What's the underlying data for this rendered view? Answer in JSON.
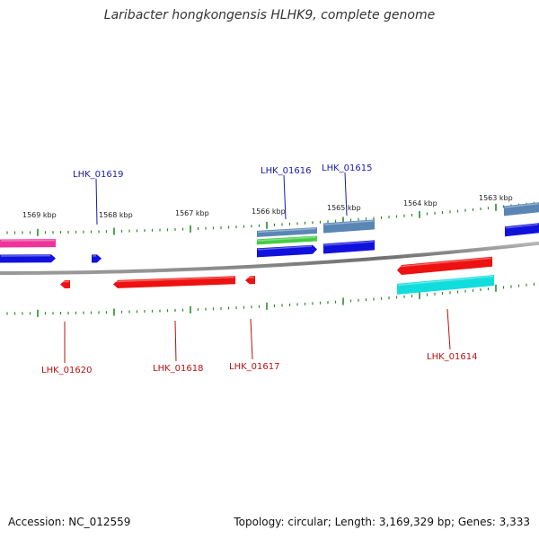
{
  "title": "Laribacter hongkongensis HLHK9, complete genome",
  "footer": {
    "accession": "Accession: NC_012559",
    "summary": "Topology: circular; Length: 3,169,329 bp; Genes: 3,333"
  },
  "colors": {
    "backbone": "#7f7f7f",
    "ticks": "#2a8a2a",
    "forward_label": "#1a1aaa",
    "reverse_label": "#bb1111",
    "pink": "#ee3399",
    "blue": "#1111dd",
    "steelblue": "#5a86b6",
    "green": "#44cc44",
    "red": "#ee1111",
    "cyan": "#11dddd"
  },
  "scale_labels": [
    {
      "kbp": 1569,
      "text": "1569 kbp"
    },
    {
      "kbp": 1568,
      "text": "1568 kbp"
    },
    {
      "kbp": 1567,
      "text": "1567 kbp"
    },
    {
      "kbp": 1566,
      "text": "1566 kbp"
    },
    {
      "kbp": 1565,
      "text": "1565 kbp"
    },
    {
      "kbp": 1564,
      "text": "1564 kbp"
    },
    {
      "kbp": 1563,
      "text": "1563 kbp"
    }
  ],
  "gene_labels": [
    {
      "id": "LHK_01619",
      "strand": "forward"
    },
    {
      "id": "LHK_01616",
      "strand": "forward"
    },
    {
      "id": "LHK_01615",
      "strand": "forward"
    },
    {
      "id": "LHK_01620",
      "strand": "reverse"
    },
    {
      "id": "LHK_01618",
      "strand": "reverse"
    },
    {
      "id": "LHK_01617",
      "strand": "reverse"
    },
    {
      "id": "LHK_01614",
      "strand": "reverse"
    }
  ]
}
